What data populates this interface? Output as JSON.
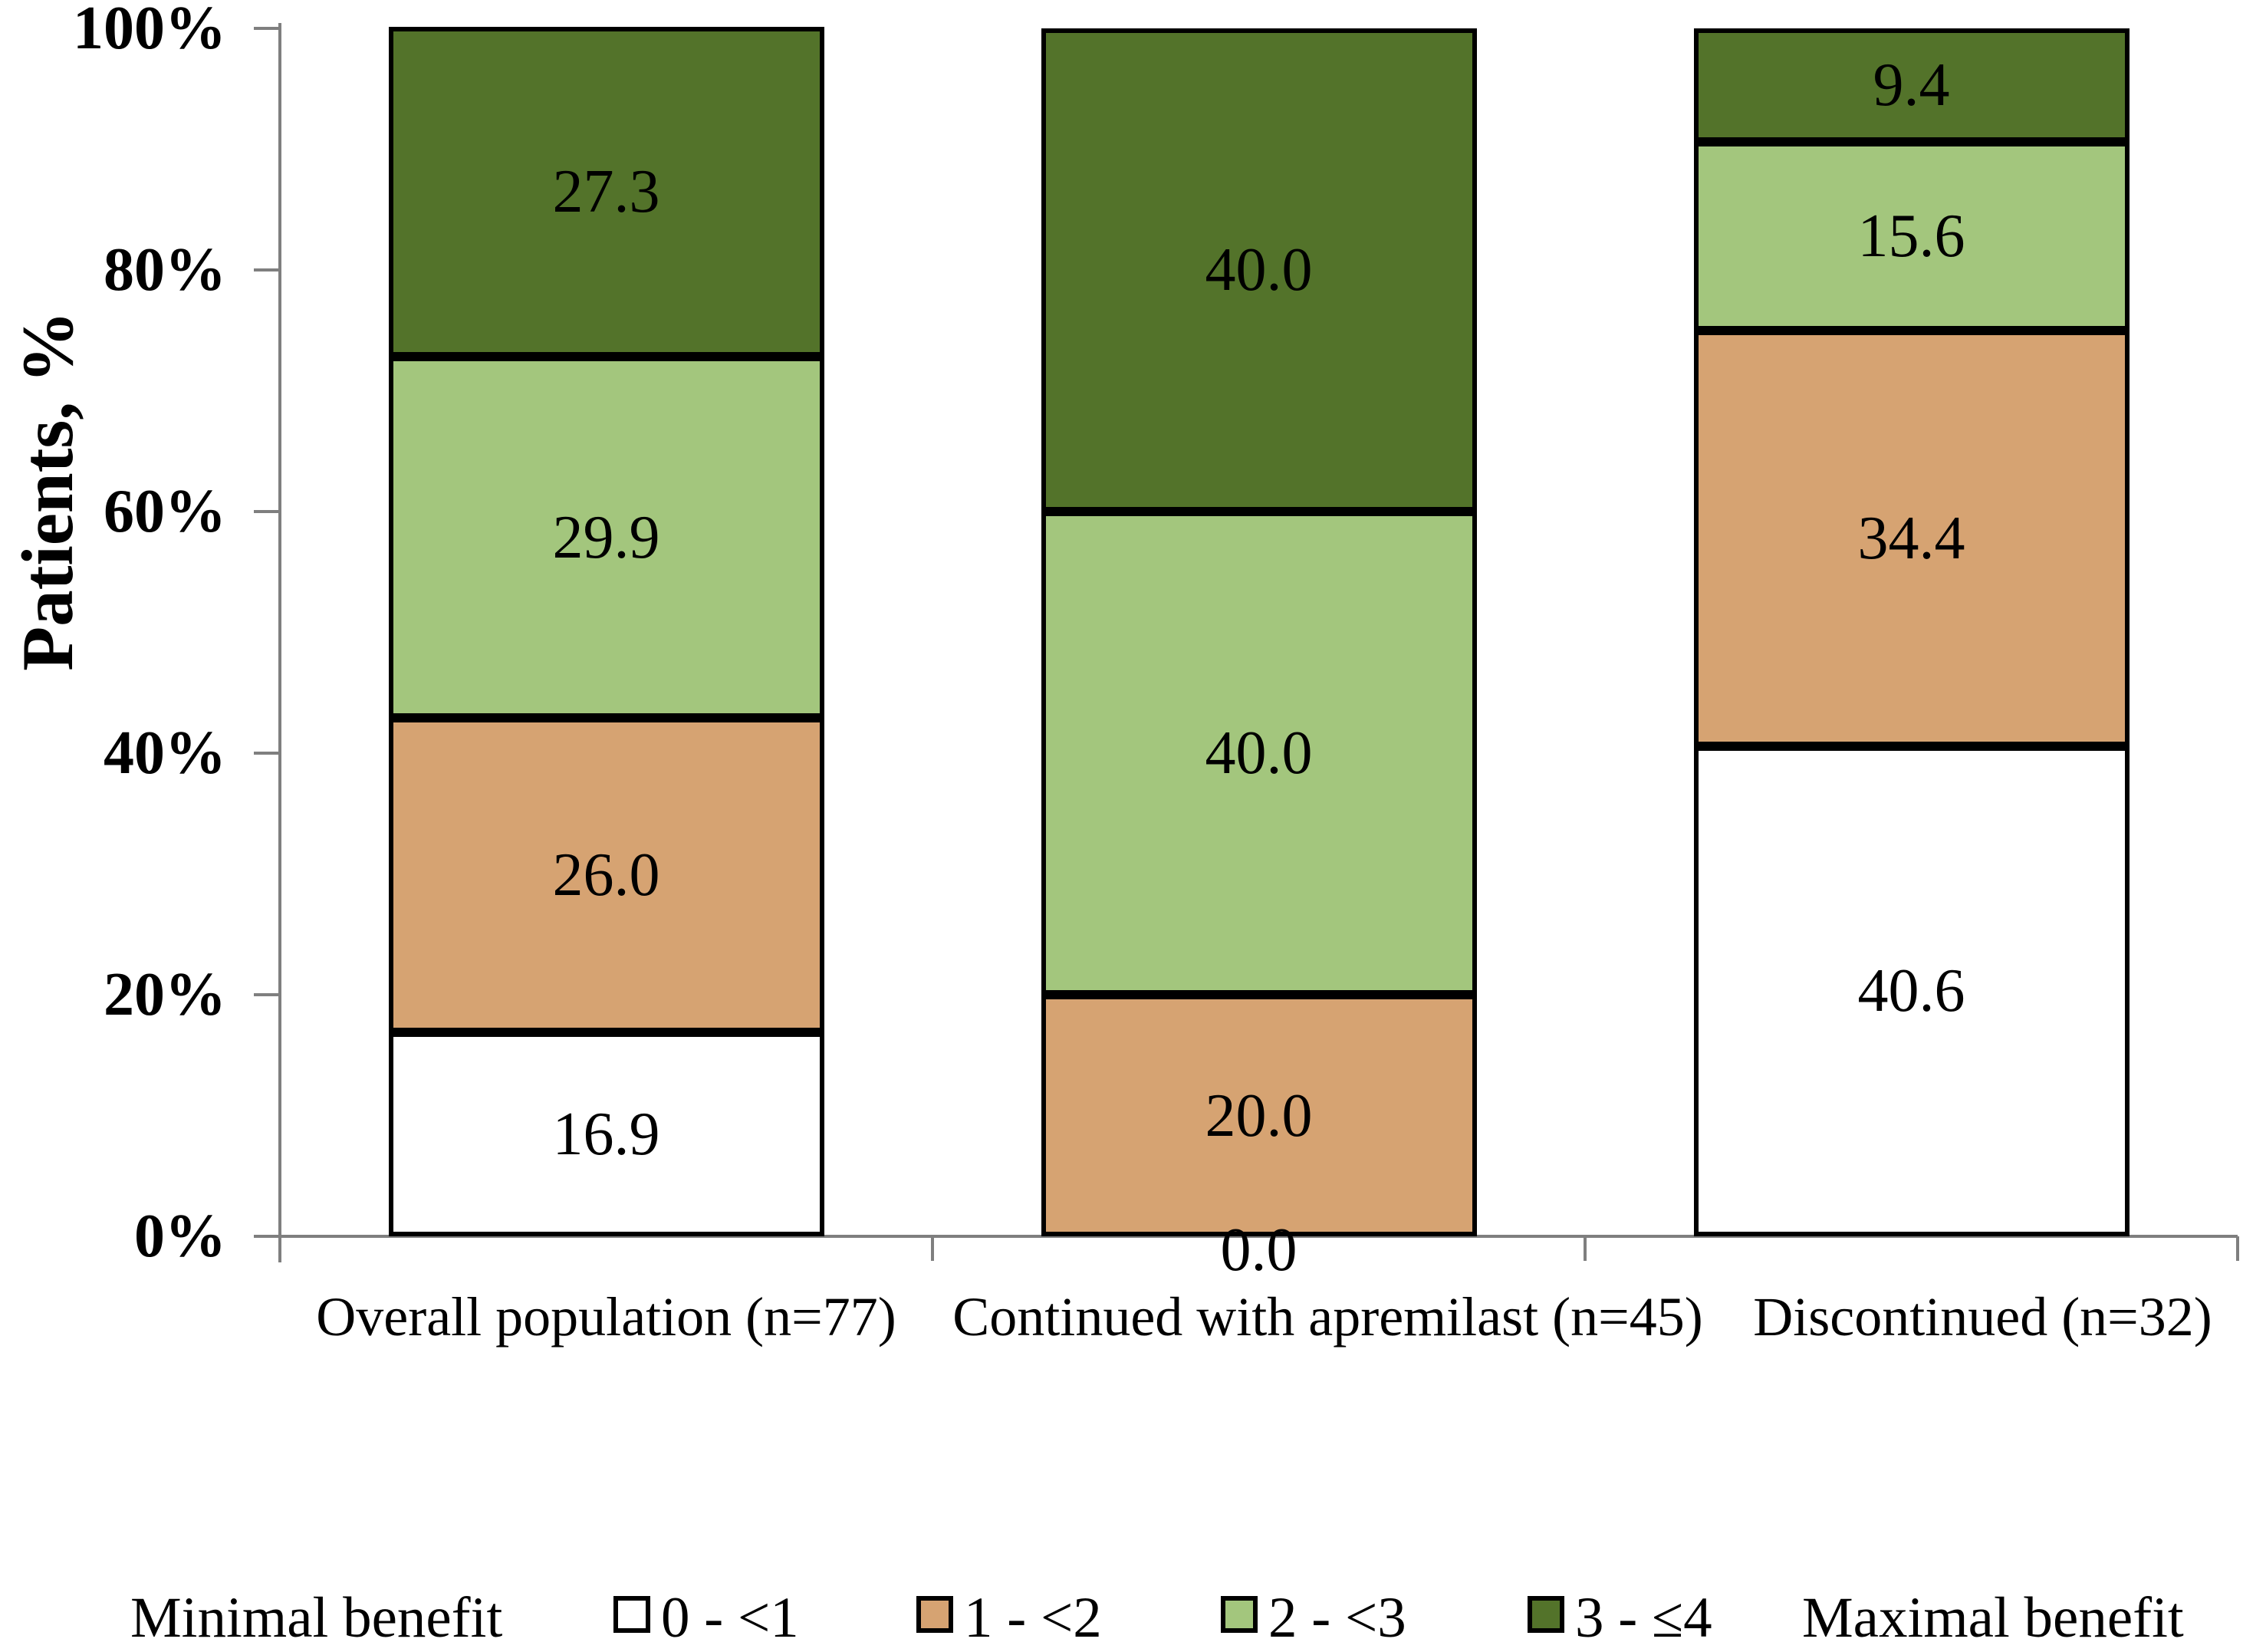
{
  "figure": {
    "background": "#FFFFFF"
  },
  "chart_data": {
    "type": "bar",
    "stacked": true,
    "title": "",
    "xlabel": "",
    "ylabel": "Patients, %",
    "ylim": [
      0,
      100
    ],
    "y_ticks": [
      0,
      20,
      40,
      60,
      80,
      100
    ],
    "y_tick_suffix": "%",
    "grid": false,
    "categories": [
      "Overall population (n=77)",
      "Continued with apremilast (n=45)",
      "Discontinued (n=32)"
    ],
    "series": [
      {
        "name": "0 - <1",
        "color": "#FFFFFF",
        "values": [
          16.9,
          0.0,
          40.6
        ]
      },
      {
        "name": "1 - <2",
        "color": "#D6A372",
        "values": [
          26.0,
          20.0,
          34.4
        ]
      },
      {
        "name": "2 - <3",
        "color": "#A3C67D",
        "values": [
          29.9,
          40.0,
          15.6
        ]
      },
      {
        "name": "3 - ≤4",
        "color": "#53732A",
        "values": [
          27.3,
          40.0,
          9.4
        ]
      }
    ],
    "legend": {
      "position": "bottom",
      "minimal_label": "Minimal benefit",
      "maximal_label": "Maximal benefit"
    },
    "colors": {
      "axis": "#7F7F7F",
      "bar_border": "#000000",
      "text": "#000000"
    }
  }
}
